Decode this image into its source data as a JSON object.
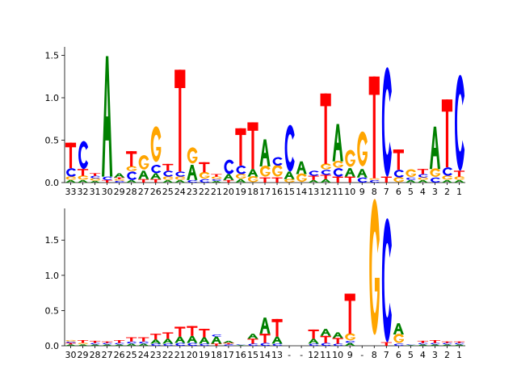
{
  "colors": {
    "A": "#008000",
    "C": "#0000ff",
    "G": "#ffa500",
    "T": "#ff0000",
    "axis": "#000000"
  },
  "chart_data": [
    {
      "type": "sequence-logo",
      "ylim": [
        0,
        1.6
      ],
      "yticks": [
        "0.0",
        "0.5",
        "1.0",
        "1.5"
      ],
      "tick_values": [
        0,
        0.5,
        1.0,
        1.5
      ],
      "tick_labels": [
        "33",
        "32",
        "31",
        "30",
        "29",
        "28",
        "27",
        "26",
        "25",
        "24",
        "23",
        "22",
        "21",
        "20",
        "19",
        "18",
        "17",
        "16",
        "15",
        "14",
        "13",
        "12",
        "11",
        "10",
        "9",
        "8",
        "7",
        "6",
        "5",
        "4",
        "3",
        "2",
        "1"
      ],
      "columns": [
        [
          [
            "A",
            0.03
          ],
          [
            "G",
            0.04
          ],
          [
            "C",
            0.1
          ],
          [
            "T",
            0.3
          ]
        ],
        [
          [
            "A",
            0.03
          ],
          [
            "G",
            0.05
          ],
          [
            "T",
            0.08
          ],
          [
            "C",
            0.33
          ]
        ],
        [
          [
            "A",
            0.02
          ],
          [
            "G",
            0.03
          ],
          [
            "C",
            0.03
          ],
          [
            "T",
            0.03
          ]
        ],
        [
          [
            "T",
            0.03
          ],
          [
            "C",
            0.04
          ],
          [
            "A",
            1.42
          ]
        ],
        [
          [
            "C",
            0.02
          ],
          [
            "G",
            0.02
          ],
          [
            "T",
            0.02
          ],
          [
            "A",
            0.05
          ]
        ],
        [
          [
            "A",
            0.03
          ],
          [
            "C",
            0.1
          ],
          [
            "G",
            0.06
          ],
          [
            "T",
            0.18
          ]
        ],
        [
          [
            "T",
            0.04
          ],
          [
            "A",
            0.1
          ],
          [
            "G",
            0.17
          ]
        ],
        [
          [
            "T",
            0.04
          ],
          [
            "A",
            0.07
          ],
          [
            "C",
            0.1
          ],
          [
            "G",
            0.42
          ]
        ],
        [
          [
            "A",
            0.03
          ],
          [
            "G",
            0.04
          ],
          [
            "C",
            0.07
          ],
          [
            "T",
            0.08
          ]
        ],
        [
          [
            "A",
            0.03
          ],
          [
            "G",
            0.04
          ],
          [
            "C",
            0.06
          ],
          [
            "T",
            1.2
          ]
        ],
        [
          [
            "C",
            0.03
          ],
          [
            "A",
            0.18
          ],
          [
            "G",
            0.19
          ]
        ],
        [
          [
            "C",
            0.04
          ],
          [
            "G",
            0.08
          ],
          [
            "T",
            0.12
          ]
        ],
        [
          [
            "A",
            0.02
          ],
          [
            "C",
            0.02
          ],
          [
            "G",
            0.03
          ],
          [
            "T",
            0.03
          ]
        ],
        [
          [
            "T",
            0.03
          ],
          [
            "A",
            0.07
          ],
          [
            "C",
            0.17
          ]
        ],
        [
          [
            "A",
            0.04
          ],
          [
            "G",
            0.06
          ],
          [
            "C",
            0.1
          ],
          [
            "T",
            0.44
          ]
        ],
        [
          [
            "G",
            0.07
          ],
          [
            "A",
            0.09
          ],
          [
            "T",
            0.55
          ]
        ],
        [
          [
            "T",
            0.06
          ],
          [
            "G",
            0.13
          ],
          [
            "A",
            0.32
          ]
        ],
        [
          [
            "T",
            0.06
          ],
          [
            "G",
            0.14
          ],
          [
            "C",
            0.1
          ]
        ],
        [
          [
            "G",
            0.04
          ],
          [
            "A",
            0.09
          ],
          [
            "C",
            0.55
          ]
        ],
        [
          [
            "G",
            0.1
          ],
          [
            "A",
            0.15
          ]
        ],
        [
          [
            "A",
            0.03
          ],
          [
            "T",
            0.05
          ],
          [
            "C",
            0.06
          ]
        ],
        [
          [
            "A",
            0.04
          ],
          [
            "T",
            0.05
          ],
          [
            "C",
            0.06
          ],
          [
            "G",
            0.07
          ],
          [
            "T",
            0.83
          ]
        ],
        [
          [
            "T",
            0.07
          ],
          [
            "C",
            0.1
          ],
          [
            "G",
            0.08
          ],
          [
            "A",
            0.44
          ]
        ],
        [
          [
            "T",
            0.07
          ],
          [
            "A",
            0.1
          ],
          [
            "G",
            0.2
          ]
        ],
        [
          [
            "C",
            0.06
          ],
          [
            "A",
            0.1
          ],
          [
            "G",
            0.41
          ]
        ],
        [
          [
            "C",
            0.03
          ],
          [
            "G",
            0.02
          ],
          [
            "T",
            1.2
          ]
        ],
        [
          [
            "T",
            0.07
          ],
          [
            "C",
            1.29
          ]
        ],
        [
          [
            "G",
            0.06
          ],
          [
            "C",
            0.09
          ],
          [
            "T",
            0.24
          ]
        ],
        [
          [
            "A",
            0.03
          ],
          [
            "C",
            0.03
          ],
          [
            "G",
            0.09
          ]
        ],
        [
          [
            "A",
            0.03
          ],
          [
            "G",
            0.03
          ],
          [
            "C",
            0.04
          ],
          [
            "T",
            0.06
          ]
        ],
        [
          [
            "C",
            0.06
          ],
          [
            "G",
            0.1
          ],
          [
            "A",
            0.5
          ]
        ],
        [
          [
            "A",
            0.03
          ],
          [
            "G",
            0.05
          ],
          [
            "C",
            0.1
          ],
          [
            "T",
            0.8
          ]
        ],
        [
          [
            "A",
            0.03
          ],
          [
            "G",
            0.04
          ],
          [
            "T",
            0.07
          ],
          [
            "C",
            1.13
          ]
        ]
      ]
    },
    {
      "type": "sequence-logo",
      "ylim": [
        0,
        1.95
      ],
      "yticks": [
        "0.0",
        "0.5",
        "1.0",
        "1.5"
      ],
      "tick_values": [
        0,
        0.5,
        1.0,
        1.5
      ],
      "tick_labels": [
        "30",
        "29",
        "28",
        "27",
        "26",
        "25",
        "24",
        "23",
        "22",
        "21",
        "20",
        "19",
        "18",
        "17",
        "16",
        "15",
        "14",
        "13",
        "-",
        "-",
        "12",
        "11",
        "10",
        "9",
        "-",
        "8",
        "7",
        "6",
        "5",
        "4",
        "3",
        "2",
        "1"
      ],
      "columns": [
        [
          [
            "A",
            0.02
          ],
          [
            "T",
            0.02
          ],
          [
            "C",
            0.02
          ],
          [
            "G",
            0.02
          ]
        ],
        [
          [
            "A",
            0.02
          ],
          [
            "G",
            0.02
          ],
          [
            "T",
            0.04
          ]
        ],
        [
          [
            "A",
            0.02
          ],
          [
            "C",
            0.02
          ],
          [
            "T",
            0.03
          ]
        ],
        [
          [
            "A",
            0.02
          ],
          [
            "C",
            0.02
          ],
          [
            "T",
            0.02
          ]
        ],
        [
          [
            "A",
            0.02
          ],
          [
            "C",
            0.02
          ],
          [
            "T",
            0.04
          ]
        ],
        [
          [
            "A",
            0.03
          ],
          [
            "C",
            0.03
          ],
          [
            "T",
            0.06
          ]
        ],
        [
          [
            "A",
            0.03
          ],
          [
            "C",
            0.03
          ],
          [
            "T",
            0.06
          ]
        ],
        [
          [
            "C",
            0.03
          ],
          [
            "A",
            0.06
          ],
          [
            "T",
            0.08
          ]
        ],
        [
          [
            "C",
            0.03
          ],
          [
            "A",
            0.07
          ],
          [
            "T",
            0.09
          ]
        ],
        [
          [
            "C",
            0.04
          ],
          [
            "A",
            0.09
          ],
          [
            "T",
            0.14
          ]
        ],
        [
          [
            "C",
            0.04
          ],
          [
            "A",
            0.1
          ],
          [
            "T",
            0.14
          ]
        ],
        [
          [
            "C",
            0.03
          ],
          [
            "A",
            0.09
          ],
          [
            "T",
            0.12
          ]
        ],
        [
          [
            "T",
            0.03
          ],
          [
            "A",
            0.1
          ],
          [
            "C",
            0.03
          ]
        ],
        [
          [
            "C",
            0.02
          ],
          [
            "T",
            0.02
          ],
          [
            "A",
            0.03
          ]
        ],
        [
          [
            "A",
            0.01
          ],
          [
            "C",
            0.01
          ]
        ],
        [
          [
            "C",
            0.03
          ],
          [
            "T",
            0.07
          ],
          [
            "A",
            0.07
          ]
        ],
        [
          [
            "C",
            0.04
          ],
          [
            "T",
            0.13
          ],
          [
            "A",
            0.23
          ]
        ],
        [
          [
            "C",
            0.03
          ],
          [
            "A",
            0.1
          ],
          [
            "T",
            0.25
          ]
        ],
        [],
        [],
        [
          [
            "C",
            0.03
          ],
          [
            "A",
            0.07
          ],
          [
            "T",
            0.13
          ]
        ],
        [
          [
            "C",
            0.04
          ],
          [
            "T",
            0.1
          ],
          [
            "A",
            0.1
          ]
        ],
        [
          [
            "C",
            0.03
          ],
          [
            "T",
            0.08
          ],
          [
            "A",
            0.08
          ]
        ],
        [
          [
            "A",
            0.04
          ],
          [
            "C",
            0.03
          ],
          [
            "G",
            0.1
          ],
          [
            "T",
            0.57
          ]
        ],
        [],
        [
          [
            "G",
            1.93
          ]
        ],
        [
          [
            "T",
            0.05
          ],
          [
            "C",
            1.76
          ]
        ],
        [
          [
            "C",
            0.03
          ],
          [
            "G",
            0.13
          ],
          [
            "A",
            0.16
          ]
        ],
        [
          [
            "A",
            0.01
          ],
          [
            "C",
            0.01
          ]
        ],
        [
          [
            "A",
            0.02
          ],
          [
            "C",
            0.02
          ],
          [
            "T",
            0.03
          ]
        ],
        [
          [
            "A",
            0.02
          ],
          [
            "C",
            0.02
          ],
          [
            "T",
            0.04
          ]
        ],
        [
          [
            "A",
            0.02
          ],
          [
            "C",
            0.02
          ],
          [
            "T",
            0.02
          ]
        ],
        [
          [
            "A",
            0.02
          ],
          [
            "C",
            0.02
          ],
          [
            "T",
            0.02
          ]
        ]
      ]
    }
  ]
}
